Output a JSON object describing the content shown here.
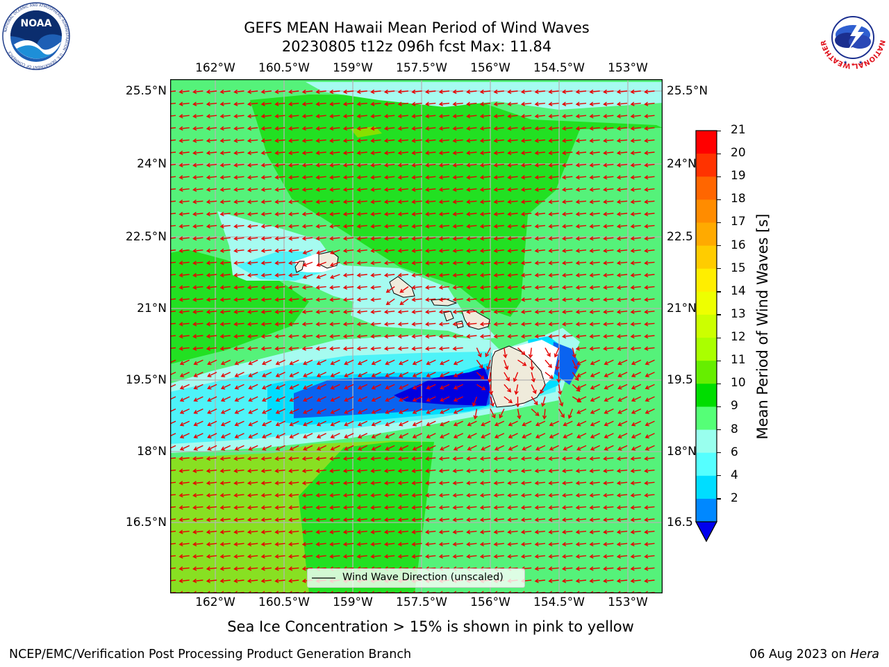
{
  "header": {
    "title_line1": "GEFS MEAN Hawaii Mean Period of Wind Waves",
    "title_line2": "20230805 t12z 096h fcst   Max: 11.84"
  },
  "logos": {
    "left": {
      "name": "noaa-logo",
      "text": "NOAA",
      "ring_text": "NATIONAL OCEANIC AND ATMOSPHERIC ADMINISTRATION · U.S. DEPARTMENT OF COMMERCE"
    },
    "right": {
      "name": "nws-logo",
      "ring_text": "NATIONAL WEATHER SERVICE"
    }
  },
  "map": {
    "lon_ticks": [
      "162°W",
      "160.5°W",
      "159°W",
      "157.5°W",
      "156°W",
      "154.5°W",
      "153°W"
    ],
    "lat_ticks_left": [
      "25.5°N",
      "24°N",
      "22.5°N",
      "21°N",
      "19.5°N",
      "18°N",
      "16.5°N"
    ],
    "lat_ticks_right": [
      "25.5°N",
      "24°N",
      "22.5",
      "21°N",
      "19.5",
      "18°N",
      "16.5"
    ],
    "legend_label": "Wind Wave Direction (unscaled)",
    "arrow_color": "#e60000"
  },
  "colorbar": {
    "label": "Mean Period of Wind Waves [s]",
    "ticks": [
      "21",
      "20",
      "19",
      "18",
      "17",
      "16",
      "15",
      "14",
      "13",
      "12",
      "11",
      "10",
      "9",
      "8",
      "6",
      "4",
      "2"
    ],
    "colors_top_to_bottom": [
      "#ff0000",
      "#ff3300",
      "#ff6600",
      "#ff8c00",
      "#ffaa00",
      "#ffcc00",
      "#ffee00",
      "#eeff00",
      "#ccff00",
      "#aaff00",
      "#66ee00",
      "#00dd00",
      "#55ff77",
      "#99ffee",
      "#55ffff",
      "#00ddff",
      "#0088ff"
    ],
    "under_color": "#0000ee"
  },
  "notes": {
    "sea_ice": "Sea Ice Concentration > 15% is shown in pink to yellow"
  },
  "footer": {
    "left": "NCEP/EMC/Verification Post Processing Product Generation Branch",
    "right_date": "06 Aug 2023 on ",
    "right_machine": "Hera"
  }
}
